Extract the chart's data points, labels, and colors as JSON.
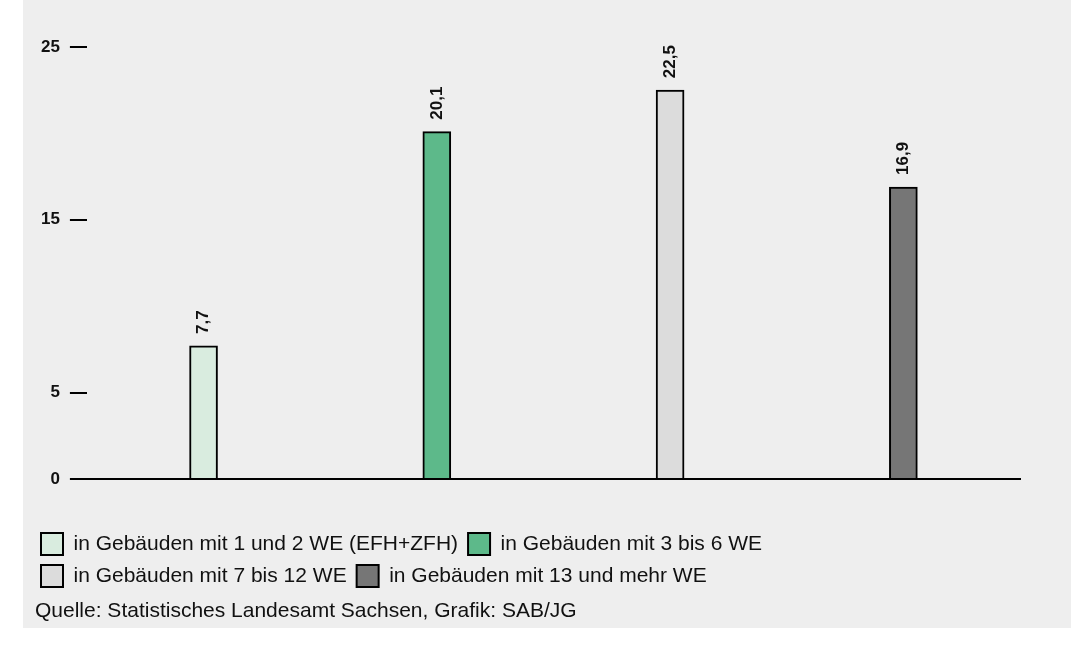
{
  "chart_data": {
    "type": "bar",
    "categories": [
      null,
      null,
      null,
      null
    ],
    "series": [
      {
        "name": "in Gebäuden mit 1 und 2 WE (EFH+ZFH)",
        "color": "#d9ecdf",
        "values": [
          7.7,
          null,
          null,
          null
        ],
        "value_labels": [
          "7,7",
          null,
          null,
          null
        ]
      },
      {
        "name": "in Gebäuden mit 3 bis 6 WE",
        "color": "#5db98a",
        "values": [
          null,
          20.1,
          null,
          null
        ],
        "value_labels": [
          null,
          "20,1",
          null,
          null
        ]
      },
      {
        "name": "in Gebäuden mit 7 bis 12 WE",
        "color": "#dcdcdc",
        "values": [
          null,
          null,
          22.5,
          null
        ],
        "value_labels": [
          null,
          null,
          "22,5",
          null
        ]
      },
      {
        "name": "in Gebäuden mit 13 und mehr WE",
        "color": "#767676",
        "values": [
          null,
          null,
          null,
          16.9
        ],
        "value_labels": [
          null,
          null,
          null,
          "16,9"
        ]
      }
    ],
    "ylim": [
      0,
      25
    ],
    "yticks": [
      0,
      5,
      15,
      25
    ],
    "grid": false,
    "legend": "bottom",
    "tick_labels": "y",
    "annotations": [
      "Quelle: Statistisches Landesamt Sachsen, Grafik: SAB/JG"
    ]
  }
}
